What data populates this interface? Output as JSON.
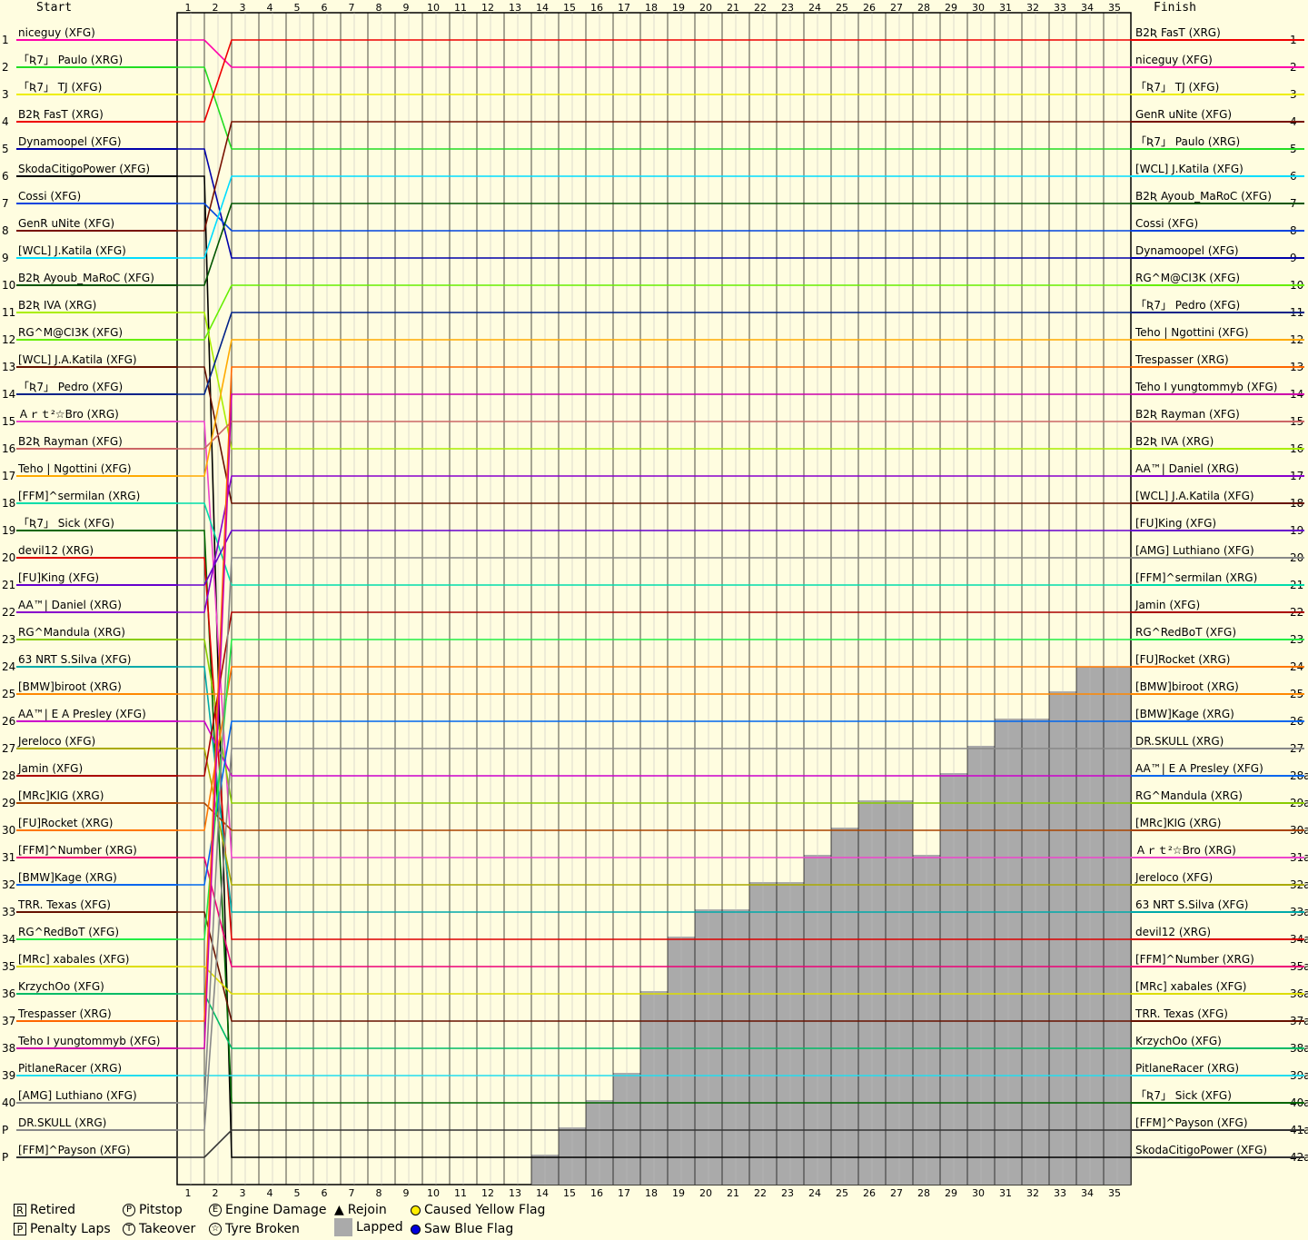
{
  "chart_data": {
    "type": "line",
    "title": "",
    "start_header": "Start",
    "finish_header": "Finish",
    "laps": [
      1,
      2,
      3,
      4,
      5,
      6,
      7,
      8,
      9,
      10,
      11,
      12,
      13,
      14,
      15,
      16,
      17,
      18,
      19,
      20,
      21,
      22,
      23,
      24,
      25,
      26,
      27,
      28,
      29,
      30,
      31,
      32,
      33,
      34,
      35
    ],
    "positions_left": [
      "1",
      "2",
      "3",
      "4",
      "5",
      "6",
      "7",
      "8",
      "9",
      "10",
      "11",
      "12",
      "13",
      "14",
      "15",
      "16",
      "17",
      "18",
      "19",
      "20",
      "21",
      "22",
      "23",
      "24",
      "25",
      "26",
      "27",
      "28",
      "29",
      "30",
      "31",
      "32",
      "33",
      "34",
      "35",
      "36",
      "37",
      "38",
      "39",
      "40",
      "P",
      "P"
    ],
    "positions_right": [
      "1",
      "2",
      "3",
      "4",
      "5",
      "6",
      "7",
      "8",
      "9",
      "10",
      "11",
      "12",
      "13",
      "14",
      "15",
      "16",
      "17",
      "18",
      "19",
      "20",
      "21",
      "22",
      "23",
      "24",
      "25",
      "26",
      "27",
      "28a",
      "29a",
      "30a",
      "31a",
      "32a",
      "33a",
      "34a",
      "35a",
      "36a",
      "37a",
      "38a",
      "39a",
      "40a",
      "41a",
      "42a"
    ],
    "start_drivers": [
      {
        "name": "niceguy (XFG)",
        "color": "#ff00aa"
      },
      {
        "name": "「Ʀ7」 Paulo (XRG)",
        "color": "#22dd22"
      },
      {
        "name": "「Ʀ7」 TJ (XFG)",
        "color": "#eeee00"
      },
      {
        "name": "B2Ʀ FasT (XRG)",
        "color": "#ee0000"
      },
      {
        "name": "Dynamoopel (XFG)",
        "color": "#0000aa"
      },
      {
        "name": "SkodaCitigoPower (XFG)",
        "color": "#000000"
      },
      {
        "name": "Cossi (XFG)",
        "color": "#0044dd"
      },
      {
        "name": "GenR uNite (XFG)",
        "color": "#771100"
      },
      {
        "name": "[WCL] J.Katila (XFG)",
        "color": "#00ddff"
      },
      {
        "name": "B2Ʀ Ayoub_MaRoC (XFG)",
        "color": "#005500"
      },
      {
        "name": "B2Ʀ IVA (XRG)",
        "color": "#aaee00"
      },
      {
        "name": "RG^M@CI3K (XFG)",
        "color": "#66ee00"
      },
      {
        "name": "[WCL] J.A.Katila (XFG)",
        "color": "#661100"
      },
      {
        "name": "「Ʀ7」 Pedro (XFG)",
        "color": "#002288"
      },
      {
        "name": "Ａｒｔ²☆Bro (XRG)",
        "color": "#ee44cc"
      },
      {
        "name": "B2Ʀ Rayman (XFG)",
        "color": "#cc6666"
      },
      {
        "name": "Teho | Ngottini (XFG)",
        "color": "#ffaa00"
      },
      {
        "name": "[FFM]^sermilan (XRG)",
        "color": "#00ddaa"
      },
      {
        "name": "「Ʀ7」 Sick (XFG)",
        "color": "#006600"
      },
      {
        "name": "devil12 (XRG)",
        "color": "#dd0000"
      },
      {
        "name": "[FU]King (XFG)",
        "color": "#6600cc"
      },
      {
        "name": "AA™| Daniel (XRG)",
        "color": "#8800cc"
      },
      {
        "name": "RG^Mandula (XRG)",
        "color": "#88cc00"
      },
      {
        "name": "63 NRT S.Silva (XFG)",
        "color": "#00aaaa"
      },
      {
        "name": "[BMW]biroot (XRG)",
        "color": "#ff8800"
      },
      {
        "name": "AA™| E A Presley (XFG)",
        "color": "#cc00cc"
      },
      {
        "name": "Jereloco (XFG)",
        "color": "#aaaa00"
      },
      {
        "name": "Jamin (XFG)",
        "color": "#aa0000"
      },
      {
        "name": "[MRc]KIG (XRG)",
        "color": "#aa4400"
      },
      {
        "name": "[FU]Rocket (XRG)",
        "color": "#ff7700"
      },
      {
        "name": "[FFM]^Number (XRG)",
        "color": "#ee0077"
      },
      {
        "name": "[BMW]Kage (XRG)",
        "color": "#0066ee"
      },
      {
        "name": "TRR. Texas (XFG)",
        "color": "#661100"
      },
      {
        "name": "RG^RedBoT (XFG)",
        "color": "#22ee44"
      },
      {
        "name": "[MRc] xabales (XFG)",
        "color": "#dddd00"
      },
      {
        "name": "KrzychOo (XFG)",
        "color": "#00bb66"
      },
      {
        "name": "Trespasser (XRG)",
        "color": "#ff6600"
      },
      {
        "name": "Teho I yungtommyb (XFG)",
        "color": "#cc00aa"
      },
      {
        "name": "PitlaneRacer (XRG)",
        "color": "#22ddee"
      },
      {
        "name": "[AMG] Luthiano (XFG)",
        "color": "#888888"
      },
      {
        "name": "DR.SKULL (XRG)",
        "color": "#888888"
      },
      {
        "name": "[FFM]^Payson (XFG)",
        "color": "#333333"
      }
    ],
    "finish_drivers": [
      {
        "name": "B2Ʀ FasT (XRG)",
        "color": "#ee0000"
      },
      {
        "name": "niceguy (XFG)",
        "color": "#ff00aa"
      },
      {
        "name": "「Ʀ7」 TJ (XFG)",
        "color": "#eeee00"
      },
      {
        "name": "GenR uNite (XFG)",
        "color": "#771100"
      },
      {
        "name": "「Ʀ7」 Paulo (XRG)",
        "color": "#22dd22"
      },
      {
        "name": "[WCL] J.Katila (XFG)",
        "color": "#00ddff"
      },
      {
        "name": "B2Ʀ Ayoub_MaRoC (XFG)",
        "color": "#005500"
      },
      {
        "name": "Cossi (XFG)",
        "color": "#0044dd"
      },
      {
        "name": "Dynamoopel (XFG)",
        "color": "#0000aa"
      },
      {
        "name": "RG^M@CI3K (XFG)",
        "color": "#66ee00"
      },
      {
        "name": "「Ʀ7」 Pedro (XFG)",
        "color": "#002288"
      },
      {
        "name": "Teho | Ngottini (XFG)",
        "color": "#ffaa00"
      },
      {
        "name": "Trespasser (XRG)",
        "color": "#ff6600"
      },
      {
        "name": "Teho I yungtommyb (XFG)",
        "color": "#cc00aa"
      },
      {
        "name": "B2Ʀ Rayman (XFG)",
        "color": "#cc6666"
      },
      {
        "name": "B2Ʀ IVA (XRG)",
        "color": "#aaee00"
      },
      {
        "name": "AA™| Daniel (XRG)",
        "color": "#8800cc"
      },
      {
        "name": "[WCL] J.A.Katila (XFG)",
        "color": "#661100"
      },
      {
        "name": "[FU]King (XFG)",
        "color": "#6600cc"
      },
      {
        "name": "[AMG] Luthiano (XFG)",
        "color": "#888888"
      },
      {
        "name": "[FFM]^sermilan (XRG)",
        "color": "#00ddaa"
      },
      {
        "name": "Jamin (XFG)",
        "color": "#aa0000"
      },
      {
        "name": "RG^RedBoT (XFG)",
        "color": "#22ee44"
      },
      {
        "name": "[FU]Rocket (XRG)",
        "color": "#ff7700"
      },
      {
        "name": "[BMW]biroot (XRG)",
        "color": "#ff8800"
      },
      {
        "name": "[BMW]Kage (XRG)",
        "color": "#0066ee"
      },
      {
        "name": "DR.SKULL (XRG)",
        "color": "#888888"
      },
      {
        "name": "AA™| E A Presley (XFG)",
        "color": "#0066ee"
      },
      {
        "name": "RG^Mandula (XRG)",
        "color": "#88cc00"
      },
      {
        "name": "[MRc]KIG (XRG)",
        "color": "#aa4400"
      },
      {
        "name": "Ａｒｔ²☆Bro (XRG)",
        "color": "#ee44cc"
      },
      {
        "name": "Jereloco (XFG)",
        "color": "#aaaa00"
      },
      {
        "name": "63 NRT S.Silva (XFG)",
        "color": "#00aaaa"
      },
      {
        "name": "devil12 (XRG)",
        "color": "#dd0000"
      },
      {
        "name": "[FFM]^Number (XRG)",
        "color": "#ee0077"
      },
      {
        "name": "[MRc] xabales (XFG)",
        "color": "#dddd00"
      },
      {
        "name": "TRR. Texas (XFG)",
        "color": "#661100"
      },
      {
        "name": "KrzychOo (XFG)",
        "color": "#00bb66"
      },
      {
        "name": "PitlaneRacer (XRG)",
        "color": "#22ddee"
      },
      {
        "name": "「Ʀ7」 Sick (XFG)",
        "color": "#006600"
      },
      {
        "name": "[FFM]^Payson (XFG)",
        "color": "#333333"
      },
      {
        "name": "SkodaCitigoPower (XFG)",
        "color": "#333333"
      }
    ],
    "lapped_depth_by_lap": [
      0,
      0,
      0,
      0,
      0,
      0,
      0,
      0,
      0,
      0,
      0,
      0,
      0,
      25,
      26,
      27,
      28,
      31,
      33,
      34,
      34,
      35,
      35,
      36,
      37,
      38,
      38,
      36,
      39,
      40,
      41,
      41,
      42,
      45,
      45
    ],
    "grid": true
  },
  "legend": {
    "retired": "Retired",
    "penalty_laps": "Penalty Laps",
    "pitstop": "Pitstop",
    "takeover": "Takeover",
    "engine_damage": "Engine Damage",
    "tyre_broken": "Tyre Broken",
    "rejoin": "Rejoin",
    "lapped": "Lapped",
    "caused_yellow_flag": "Caused Yellow Flag",
    "saw_blue_flag": "Saw Blue Flag",
    "retired_symbol": "R",
    "penalty_symbol": "P",
    "pitstop_symbol": "P",
    "takeover_symbol": "T",
    "engine_symbol": "E",
    "tyre_symbol": "☆",
    "rejoin_symbol": "▲",
    "yellow_color": "#ffee00",
    "blue_color": "#0000dd",
    "lapped_color": "#aaaaaa"
  }
}
